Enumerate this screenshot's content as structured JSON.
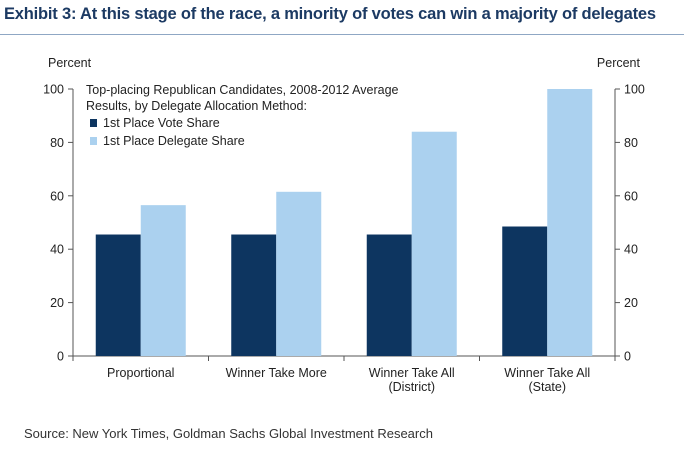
{
  "exhibit": {
    "title": "Exhibit 3: At this stage of the race, a minority of votes can win a majority of delegates",
    "source": "Source: New York Times, Goldman Sachs Global Investment Research"
  },
  "chart_data": {
    "type": "bar",
    "title": "Top-placing Republican Candidates, 2008-2012 Average Results, by Delegate Allocation Method:",
    "title_lines": [
      "Top-placing Republican Candidates, 2008-2012 Average",
      "Results, by Delegate Allocation Method:"
    ],
    "ylabel_left": "Percent",
    "ylabel_right": "Percent",
    "ylim": [
      0,
      100
    ],
    "yticks": [
      0,
      20,
      40,
      60,
      80,
      100
    ],
    "grid": false,
    "legend_position": "top-left",
    "categories": [
      [
        "Proportional"
      ],
      [
        "Winner Take More"
      ],
      [
        "Winner Take All",
        "(District)"
      ],
      [
        "Winner Take All",
        "(State)"
      ]
    ],
    "series": [
      {
        "name": "1st Place Vote Share",
        "color": "#0d3560",
        "values": [
          45.5,
          45.5,
          45.5,
          48.5
        ]
      },
      {
        "name": "1st Place Delegate Share",
        "color": "#abd1ef",
        "values": [
          56.5,
          61.5,
          84,
          100
        ]
      }
    ]
  }
}
